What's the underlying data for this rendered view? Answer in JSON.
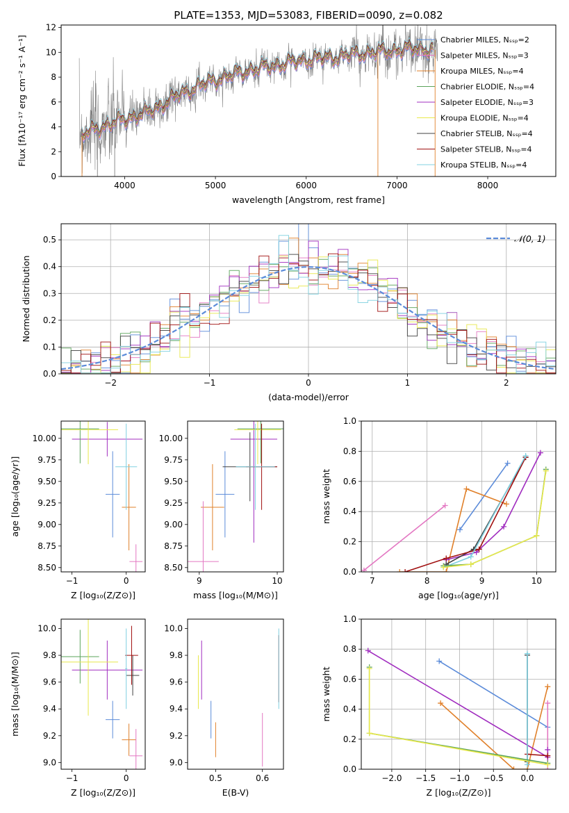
{
  "chart_data": [
    {
      "id": "spectrum",
      "type": "line",
      "title": "PLATE=1353, MJD=53083, FIBERID=0090, z=0.082",
      "xlabel": "wavelength [Angstrom, rest frame]",
      "ylabel": "Flux [fλ10⁻¹⁷ erg cm⁻² s⁻¹ A⁻¹]",
      "xlim": [
        3300,
        8750
      ],
      "ylim": [
        0,
        12.2
      ],
      "xticks": [
        4000,
        5000,
        6000,
        7000,
        8000
      ],
      "yticks": [
        0,
        2,
        4,
        6,
        8,
        10,
        12
      ],
      "legend_position": "top-right",
      "series": [
        {
          "name": "Chabrier MILES, Nₛₛₚ=2",
          "color": "#5b8bd9"
        },
        {
          "name": "Salpeter MILES, Nₛₛₚ=3",
          "color": "#e377c2"
        },
        {
          "name": "Kroupa MILES, Nₛₛₚ=4",
          "color": "#e0802a"
        },
        {
          "name": "Chabrier ELODIE, Nₛₛₚ=4",
          "color": "#5aa35a"
        },
        {
          "name": "Salpeter ELODIE, Nₛₛₚ=3",
          "color": "#a02cbf"
        },
        {
          "name": "Kroupa ELODIE, Nₛₛₚ=4",
          "color": "#e8e84a"
        },
        {
          "name": "Chabrier STELIB, Nₛₛₚ=4",
          "color": "#404040"
        },
        {
          "name": "Salpeter STELIB, Nₛₛₚ=4",
          "color": "#a01010"
        },
        {
          "name": "Kroupa STELIB, Nₛₛₚ=4",
          "color": "#80d0e0"
        }
      ],
      "data_color": "#808080",
      "continuum_x": [
        3500,
        3700,
        4000,
        4300,
        4600,
        4850,
        5100,
        5400,
        5700,
        6000,
        6300,
        6600,
        6900,
        7200,
        7400
      ],
      "continuum_y": [
        3.2,
        3.9,
        4.6,
        5.3,
        6.6,
        7.4,
        8.0,
        8.6,
        9.0,
        9.4,
        9.6,
        9.9,
        10.1,
        10.3,
        10.2
      ]
    },
    {
      "id": "residuals",
      "type": "histogram",
      "xlabel": "(data-model)/error",
      "ylabel": "Normed distribution",
      "xlim": [
        -2.5,
        2.5
      ],
      "ylim": [
        0,
        0.56
      ],
      "xticks": [
        -2,
        -1,
        0,
        1,
        2
      ],
      "yticks": [
        0.0,
        0.1,
        0.2,
        0.3,
        0.4,
        0.5
      ],
      "grid": true,
      "legend_position": "top-right",
      "reference_curve": {
        "name": "𝒩(0, 1)",
        "mean": 0,
        "sigma": 1,
        "color": "#5b8bd9"
      }
    },
    {
      "id": "age-vs-Z",
      "type": "scatter",
      "xlabel": "Z [log₁₀(Z/Z⊙)]",
      "ylabel": "age  [log₁₀(age/yr)]",
      "xlim": [
        -1.2,
        0.35
      ],
      "ylim": [
        8.45,
        10.2
      ],
      "xticks": [
        -1,
        0
      ],
      "yticks": [
        8.5,
        8.75,
        9.0,
        9.25,
        9.5,
        9.75,
        10.0
      ],
      "points": [
        {
          "x": -0.25,
          "y": 9.35,
          "xerr": 0.13,
          "yerr": 0.5,
          "color": "#5b8bd9"
        },
        {
          "x": 0.05,
          "y": 9.2,
          "xerr": 0.13,
          "yerr": 0.5,
          "color": "#e0802a"
        },
        {
          "x": 0.18,
          "y": 8.57,
          "xerr": 0.12,
          "yerr": 0.2,
          "color": "#e377c2"
        },
        {
          "x": -0.35,
          "y": 9.99,
          "xerr": 0.65,
          "yerr": 0.2,
          "color": "#a02cbf"
        },
        {
          "x": -0.85,
          "y": 10.11,
          "xerr": 0.35,
          "yerr": 0.4,
          "color": "#5aa35a"
        },
        {
          "x": -0.7,
          "y": 10.1,
          "xerr": 0.55,
          "yerr": 0.4,
          "color": "#e8e84a"
        },
        {
          "x": 0.0,
          "y": 9.67,
          "xerr": 0.2,
          "yerr": 0.5,
          "color": "#80d0e0"
        }
      ]
    },
    {
      "id": "age-vs-mass",
      "type": "scatter",
      "xlabel": "mass [log₁₀(M/M⊙)]",
      "ylabel": "",
      "xlim": [
        8.85,
        10.08
      ],
      "ylim": [
        8.45,
        10.2
      ],
      "xticks": [
        9,
        10
      ],
      "yticks": [
        8.5,
        8.75,
        9.0,
        9.25,
        9.5,
        9.75,
        10.0
      ],
      "points": [
        {
          "x": 9.33,
          "y": 9.35,
          "xerr": 0.12,
          "yerr": 0.5,
          "color": "#5b8bd9"
        },
        {
          "x": 9.17,
          "y": 9.2,
          "xerr": 0.15,
          "yerr": 0.5,
          "color": "#e0802a"
        },
        {
          "x": 9.05,
          "y": 8.57,
          "xerr": 0.2,
          "yerr": 0.7,
          "color": "#e377c2"
        },
        {
          "x": 9.7,
          "y": 9.99,
          "xerr": 0.3,
          "yerr": 1.2,
          "color": "#a02cbf"
        },
        {
          "x": 9.79,
          "y": 10.11,
          "xerr": 0.3,
          "yerr": 0.4,
          "color": "#5aa35a"
        },
        {
          "x": 9.75,
          "y": 10.1,
          "xerr": 0.3,
          "yerr": 0.4,
          "color": "#e8e84a"
        },
        {
          "x": 9.65,
          "y": 9.67,
          "xerr": 0.35,
          "yerr": 0.4,
          "color": "#404040"
        },
        {
          "x": 9.8,
          "y": 9.67,
          "xerr": 0.2,
          "yerr": 0.5,
          "color": "#a01010"
        },
        {
          "x": 9.72,
          "y": 9.67,
          "xerr": 0.25,
          "yerr": 0.5,
          "color": "#80d0e0"
        }
      ]
    },
    {
      "id": "weight-vs-age",
      "type": "line",
      "xlabel": "age  [log₁₀(age/yr)]",
      "ylabel": "mass weight",
      "xlim": [
        6.8,
        10.35
      ],
      "ylim": [
        0,
        1.0
      ],
      "xticks": [
        7,
        8,
        9,
        10
      ],
      "yticks": [
        0.0,
        0.2,
        0.4,
        0.6,
        0.8,
        1.0
      ],
      "grid": true,
      "series": [
        {
          "color": "#5b8bd9",
          "x": [
            8.6,
            9.47
          ],
          "y": [
            0.28,
            0.72
          ]
        },
        {
          "color": "#e377c2",
          "x": [
            6.85,
            8.33
          ],
          "y": [
            0.01,
            0.44
          ]
        },
        {
          "color": "#e0802a",
          "x": [
            7.5,
            8.35,
            8.72,
            9.45
          ],
          "y": [
            0.0,
            0.0,
            0.55,
            0.45
          ]
        },
        {
          "color": "#a02cbf",
          "x": [
            8.35,
            8.9,
            9.4,
            10.07
          ],
          "y": [
            0.08,
            0.13,
            0.3,
            0.79
          ]
        },
        {
          "color": "#404040",
          "x": [
            8.35,
            8.85,
            9.8
          ],
          "y": [
            0.05,
            0.15,
            0.76
          ]
        },
        {
          "color": "#a01010",
          "x": [
            7.6,
            8.35,
            8.95,
            9.8
          ],
          "y": [
            0.0,
            0.09,
            0.15,
            0.76
          ]
        },
        {
          "color": "#80d0e0",
          "x": [
            8.3,
            8.8,
            9.8
          ],
          "y": [
            0.03,
            0.1,
            0.77
          ]
        },
        {
          "color": "#5aa35a",
          "x": [
            8.3,
            8.8,
            10.0,
            10.17
          ],
          "y": [
            0.04,
            0.05,
            0.24,
            0.68
          ]
        },
        {
          "color": "#e8e84a",
          "x": [
            8.3,
            8.8,
            10.0,
            10.17
          ],
          "y": [
            0.03,
            0.05,
            0.24,
            0.67
          ]
        }
      ]
    },
    {
      "id": "mass-vs-Z",
      "type": "scatter",
      "xlabel": "Z [log₁₀(Z/Z⊙)]",
      "ylabel": "mass [log₁₀(M/M⊙)]",
      "xlim": [
        -1.2,
        0.35
      ],
      "ylim": [
        8.95,
        10.07
      ],
      "xticks": [
        -1,
        0
      ],
      "yticks": [
        9.0,
        9.2,
        9.4,
        9.6,
        9.8,
        10.0
      ],
      "points": [
        {
          "x": -0.25,
          "y": 9.32,
          "xerr": 0.13,
          "yerr": 0.14,
          "color": "#5b8bd9"
        },
        {
          "x": 0.05,
          "y": 9.17,
          "xerr": 0.13,
          "yerr": 0.12,
          "color": "#e0802a"
        },
        {
          "x": 0.18,
          "y": 9.05,
          "xerr": 0.12,
          "yerr": 0.2,
          "color": "#e377c2"
        },
        {
          "x": -0.35,
          "y": 9.69,
          "xerr": 0.65,
          "yerr": 0.22,
          "color": "#a02cbf"
        },
        {
          "x": -0.85,
          "y": 9.79,
          "xerr": 0.35,
          "yerr": 0.2,
          "color": "#5aa35a"
        },
        {
          "x": -0.7,
          "y": 9.75,
          "xerr": 0.55,
          "yerr": 0.4,
          "color": "#e8e84a"
        },
        {
          "x": 0.12,
          "y": 9.65,
          "xerr": 0.12,
          "yerr": 0.15,
          "color": "#404040"
        },
        {
          "x": 0.1,
          "y": 9.8,
          "xerr": 0.12,
          "yerr": 0.22,
          "color": "#a01010"
        },
        {
          "x": 0.0,
          "y": 9.7,
          "xerr": 0.02,
          "yerr": 0.3,
          "color": "#80d0e0"
        }
      ]
    },
    {
      "id": "mass-vs-ebv",
      "type": "scatter",
      "xlabel": "E(B-V)",
      "ylabel": "",
      "xlim": [
        0.44,
        0.645
      ],
      "ylim": [
        8.95,
        10.07
      ],
      "xticks": [
        0.5,
        0.6
      ],
      "yticks": [
        9.0,
        9.2,
        9.4,
        9.6,
        9.8,
        10.0
      ],
      "points": [
        {
          "x": 0.49,
          "y": 9.32,
          "xerr": 0.0,
          "yerr": 0.14,
          "color": "#5b8bd9"
        },
        {
          "x": 0.5,
          "y": 9.17,
          "xerr": 0.0,
          "yerr": 0.13,
          "color": "#e0802a"
        },
        {
          "x": 0.6,
          "y": 9.17,
          "xerr": 0.0,
          "yerr": 0.2,
          "color": "#e377c2"
        },
        {
          "x": 0.47,
          "y": 9.69,
          "xerr": 0.0,
          "yerr": 0.22,
          "color": "#a02cbf"
        },
        {
          "x": 0.463,
          "y": 9.6,
          "xerr": 0.0,
          "yerr": 0.2,
          "color": "#e8e84a"
        },
        {
          "x": 0.635,
          "y": 9.7,
          "xerr": 0.0,
          "yerr": 0.25,
          "color": "#a01010"
        },
        {
          "x": 0.635,
          "y": 9.7,
          "xerr": 0.0,
          "yerr": 0.3,
          "color": "#80d0e0"
        }
      ]
    },
    {
      "id": "weight-vs-Z",
      "type": "line",
      "xlabel": "Z [log₁₀(Z/Z⊙)]",
      "ylabel": "mass weight",
      "xlim": [
        -2.45,
        0.42
      ],
      "ylim": [
        0,
        1.0
      ],
      "xticks": [
        -2.0,
        -1.5,
        -1.0,
        -0.5,
        0.0
      ],
      "yticks": [
        0.0,
        0.2,
        0.4,
        0.6,
        0.8,
        1.0
      ],
      "grid": true,
      "series": [
        {
          "color": "#5b8bd9",
          "x": [
            -1.3,
            0.3
          ],
          "y": [
            0.72,
            0.28
          ]
        },
        {
          "color": "#e377c2",
          "x": [
            0.3,
            0.3
          ],
          "y": [
            0.0,
            0.44
          ]
        },
        {
          "color": "#e0802a",
          "x": [
            -1.28,
            -0.2,
            0.0,
            0.3
          ],
          "y": [
            0.44,
            0.0,
            0.0,
            0.55
          ]
        },
        {
          "color": "#a02cbf",
          "x": [
            -2.35,
            0.3,
            0.3
          ],
          "y": [
            0.79,
            0.08,
            0.13
          ]
        },
        {
          "color": "#404040",
          "x": [
            0.0,
            0.0
          ],
          "y": [
            0.05,
            0.76
          ]
        },
        {
          "color": "#a01010",
          "x": [
            0.0,
            0.3
          ],
          "y": [
            0.1,
            0.09
          ]
        },
        {
          "color": "#80d0e0",
          "x": [
            0.0,
            0.0
          ],
          "y": [
            0.03,
            0.77
          ]
        },
        {
          "color": "#5aa35a",
          "x": [
            -2.33,
            -2.33,
            0.3
          ],
          "y": [
            0.68,
            0.24,
            0.04
          ]
        },
        {
          "color": "#e8e84a",
          "x": [
            -2.33,
            -2.33,
            0.3
          ],
          "y": [
            0.67,
            0.24,
            0.03
          ]
        }
      ]
    }
  ]
}
